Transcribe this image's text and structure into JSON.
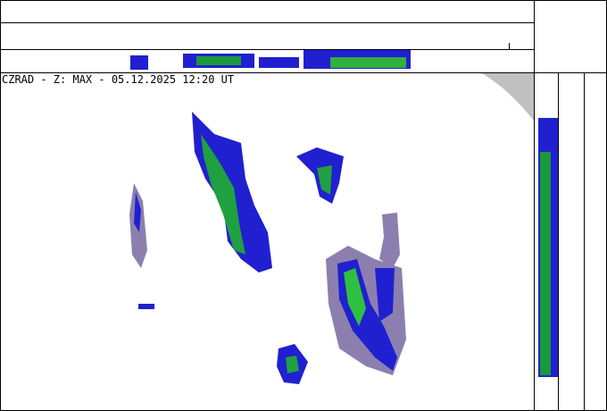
{
  "header": {
    "title": "CZRAD - Z: MAX - 05.12.2025 12:20 UT"
  }
}
